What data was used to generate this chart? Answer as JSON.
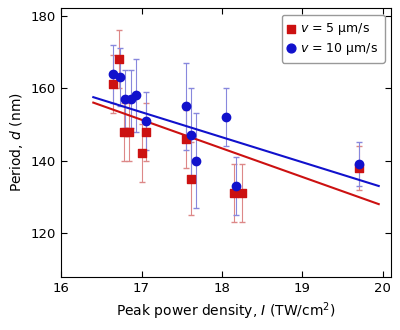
{
  "red_x": [
    16.65,
    16.72,
    16.78,
    16.85,
    17.0,
    17.05,
    17.55,
    17.62,
    18.15,
    18.25,
    19.7
  ],
  "red_y": [
    161,
    168,
    148,
    148,
    142,
    148,
    146,
    135,
    131,
    131,
    138
  ],
  "red_yerr": [
    8,
    8,
    8,
    8,
    8,
    8,
    8,
    10,
    8,
    8,
    6
  ],
  "blue_x": [
    16.65,
    16.73,
    16.8,
    16.87,
    16.93,
    17.05,
    17.55,
    17.62,
    17.68,
    18.05,
    18.18,
    19.7
  ],
  "blue_y": [
    164,
    163,
    157,
    157,
    158,
    151,
    155,
    147,
    140,
    152,
    133,
    139
  ],
  "blue_yerr": [
    8,
    8,
    8,
    8,
    10,
    8,
    12,
    13,
    13,
    8,
    8,
    6
  ],
  "red_line_x": [
    16.4,
    19.95
  ],
  "red_line_y": [
    156.0,
    128.0
  ],
  "blue_line_x": [
    16.4,
    19.95
  ],
  "blue_line_y": [
    157.5,
    133.0
  ],
  "xlabel": "Peak power density, $I$ (TW/cm$^2$)",
  "ylabel": "Period, $d$ (nm)",
  "xlim": [
    16.1,
    20.1
  ],
  "ylim": [
    108,
    182
  ],
  "yticks": [
    120,
    140,
    160,
    180
  ],
  "xticks": [
    16,
    17,
    18,
    19,
    20
  ],
  "legend_labels": [
    "$v$ = 5 μm/s",
    "$v$ = 10 μm/s"
  ],
  "red_color": "#cc1111",
  "blue_color": "#1111cc",
  "red_err_color": "#dd8888",
  "blue_err_color": "#8888dd",
  "marker_size": 6,
  "linewidth": 1.5
}
